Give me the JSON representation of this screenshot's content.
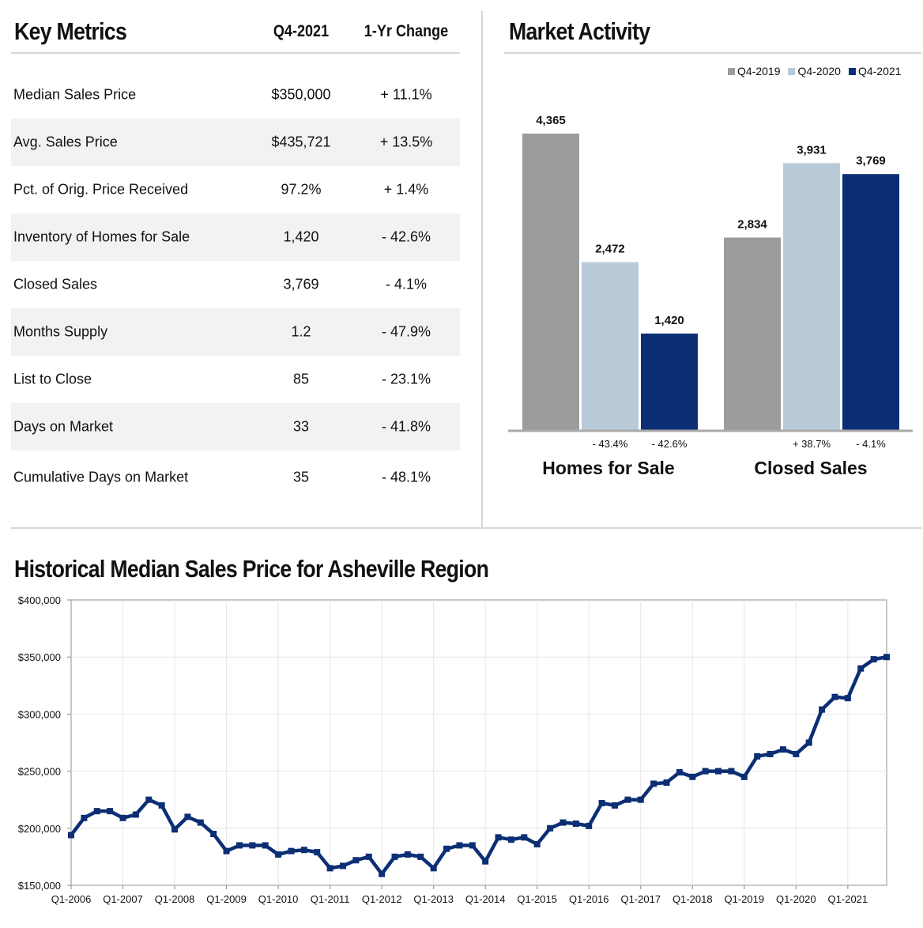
{
  "key_metrics": {
    "title": "Key Metrics",
    "col_period": "Q4-2021",
    "col_change": "1-Yr Change",
    "rows": [
      {
        "label": "Median Sales Price",
        "value": "$350,000",
        "change": "+ 11.1%"
      },
      {
        "label": "Avg. Sales Price",
        "value": "$435,721",
        "change": "+ 13.5%"
      },
      {
        "label": "Pct. of Orig. Price Received",
        "value": "97.2%",
        "change": "+ 1.4%"
      },
      {
        "label": "Inventory of Homes for Sale",
        "value": "1,420",
        "change": "- 42.6%"
      },
      {
        "label": "Closed Sales",
        "value": "3,769",
        "change": "- 4.1%"
      },
      {
        "label": "Months Supply",
        "value": "1.2",
        "change": "- 47.9%"
      },
      {
        "label": "List to Close",
        "value": "85",
        "change": "- 23.1%"
      },
      {
        "label": "Days on Market",
        "value": "33",
        "change": "- 41.8%"
      },
      {
        "label": "Cumulative Days on Market",
        "value": "35",
        "change": "- 48.1%"
      }
    ]
  },
  "market_activity": {
    "title": "Market Activity"
  },
  "historical": {
    "title": "Historical Median Sales Price for Asheville Region"
  },
  "chart_data": [
    {
      "type": "bar",
      "categories": [
        "Homes for Sale",
        "Closed Sales"
      ],
      "series": [
        {
          "name": "Q4-2019",
          "color": "#9a9c9e",
          "values": [
            4365,
            2834
          ],
          "labels": [
            "4,365",
            "2,834"
          ]
        },
        {
          "name": "Q4-2020",
          "color": "#b9cad9",
          "values": [
            2472,
            3931
          ],
          "labels": [
            "2,472",
            "3,931"
          ]
        },
        {
          "name": "Q4-2021",
          "color": "#0b2e74",
          "values": [
            1420,
            3769
          ],
          "labels": [
            "1,420",
            "3,769"
          ]
        }
      ],
      "change_labels": [
        {
          "series": "Q4-2020",
          "values": [
            "- 43.4%",
            "+ 38.7%"
          ]
        },
        {
          "series": "Q4-2021",
          "values": [
            "- 42.6%",
            "- 4.1%"
          ]
        }
      ],
      "legend": "top-right",
      "ylim": [
        0,
        4600
      ]
    },
    {
      "type": "line",
      "x_tick_labels": [
        "Q1-2006",
        "Q1-2007",
        "Q1-2008",
        "Q1-2009",
        "Q1-2010",
        "Q1-2011",
        "Q1-2012",
        "Q1-2013",
        "Q1-2014",
        "Q1-2015",
        "Q1-2016",
        "Q1-2017",
        "Q1-2018",
        "Q1-2019",
        "Q1-2020",
        "Q1-2021"
      ],
      "y_tick_labels": [
        "$150,000",
        "$200,000",
        "$250,000",
        "$300,000",
        "$350,000",
        "$400,000"
      ],
      "y_ticks": [
        150000,
        200000,
        250000,
        300000,
        350000,
        400000
      ],
      "ylim": [
        150000,
        400000
      ],
      "grid": true,
      "line_color": "#0b2e74",
      "series": [
        {
          "quarters_start": "Q1-2006",
          "values": [
            194000,
            209000,
            215000,
            215000,
            209000,
            212000,
            225000,
            220000,
            199000,
            210000,
            205000,
            195000,
            180000,
            185000,
            185000,
            185000,
            177000,
            180000,
            181000,
            179000,
            165000,
            167000,
            172000,
            175000,
            160000,
            175000,
            177000,
            175000,
            165000,
            182000,
            185000,
            185000,
            171000,
            192000,
            190000,
            192000,
            186000,
            200000,
            205000,
            204000,
            202000,
            222000,
            220000,
            225000,
            225000,
            239000,
            240000,
            249000,
            245000,
            250000,
            250000,
            250000,
            245000,
            263000,
            265000,
            269000,
            265000,
            275000,
            304000,
            315000,
            314000,
            340000,
            348000,
            350000
          ]
        }
      ]
    }
  ]
}
